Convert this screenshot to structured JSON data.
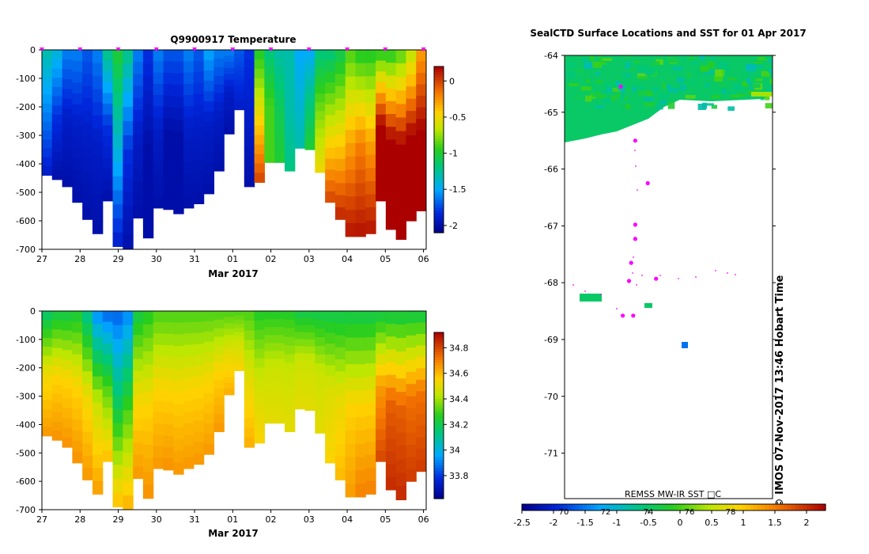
{
  "chart_data": [
    {
      "type": "heatmap",
      "title": "Q9900917  Temperature",
      "xlabel": "Mar 2017",
      "x_ticks": [
        "27",
        "28",
        "29",
        "30",
        "31",
        "01",
        "02",
        "03",
        "04",
        "05",
        "06"
      ],
      "y_ticks": [
        "0",
        "-100",
        "-200",
        "-300",
        "-400",
        "-500",
        "-600",
        "-700"
      ],
      "ylim": [
        -700,
        0
      ],
      "colorbar": {
        "ticks": [
          "0",
          "-0.5",
          "-1",
          "-1.5",
          "-2"
        ],
        "range": [
          -2.1,
          0.2
        ]
      },
      "profile_max_depth": [
        440,
        455,
        480,
        535,
        595,
        645,
        530,
        690,
        700,
        590,
        660,
        555,
        560,
        575,
        555,
        540,
        505,
        425,
        295,
        210,
        480,
        465,
        395,
        395,
        425,
        345,
        350,
        430,
        535,
        595,
        655,
        655,
        645,
        530,
        630,
        665,
        600,
        565
      ],
      "profile_temps_top_mid_bottom": [
        [
          -1.3,
          -1.6,
          -1.9
        ],
        [
          -1.4,
          -1.8,
          -2.0
        ],
        [
          -1.6,
          -1.9,
          -2.0
        ],
        [
          -1.6,
          -1.9,
          -2.0
        ],
        [
          -1.7,
          -1.9,
          -2.0
        ],
        [
          -1.6,
          -1.9,
          -2.0
        ],
        [
          -1.2,
          -1.8,
          -2.0
        ],
        [
          -1.0,
          -1.4,
          -1.9
        ],
        [
          -1.2,
          -1.8,
          -2.0
        ],
        [
          -1.6,
          -1.9,
          -2.0
        ],
        [
          -1.8,
          -2.0,
          -2.0
        ],
        [
          -1.6,
          -1.9,
          -2.0
        ],
        [
          -1.7,
          -2.0,
          -2.0
        ],
        [
          -1.7,
          -2.0,
          -2.0
        ],
        [
          -1.6,
          -1.9,
          -2.0
        ],
        [
          -1.7,
          -1.9,
          -2.0
        ],
        [
          -1.5,
          -1.9,
          -2.0
        ],
        [
          -1.6,
          -1.9,
          -2.0
        ],
        [
          -1.6,
          -1.9,
          -2.0
        ],
        [
          -1.7,
          -1.8,
          -1.9
        ],
        [
          -1.8,
          -1.9,
          -2.0
        ],
        [
          -1.0,
          -0.5,
          0.0
        ],
        [
          -1.2,
          -0.9,
          -0.9
        ],
        [
          -1.3,
          -1.1,
          -1.0
        ],
        [
          -1.3,
          -1.3,
          -1.2
        ],
        [
          -1.5,
          -1.4,
          -1.3
        ],
        [
          -1.5,
          -1.2,
          -1.0
        ],
        [
          -1.2,
          -0.8,
          -0.5
        ],
        [
          -1.2,
          -0.6,
          0.0
        ],
        [
          -1.1,
          -0.5,
          0.1
        ],
        [
          -0.9,
          -0.3,
          0.15
        ],
        [
          -1.0,
          -0.2,
          0.15
        ],
        [
          -1.0,
          -0.3,
          0.15
        ],
        [
          -1.0,
          0.2,
          0.2
        ],
        [
          -1.0,
          0.2,
          0.2
        ],
        [
          -0.9,
          0.2,
          0.2
        ],
        [
          -0.7,
          0.2,
          0.2
        ],
        [
          -0.3,
          0.2,
          0.2
        ]
      ]
    },
    {
      "type": "heatmap",
      "title": "",
      "xlabel": "Mar 2017",
      "x_ticks": [
        "27",
        "28",
        "29",
        "30",
        "31",
        "01",
        "02",
        "03",
        "04",
        "05",
        "06"
      ],
      "y_ticks": [
        "0",
        "-100",
        "-200",
        "-300",
        "-400",
        "-500",
        "-600",
        "-700"
      ],
      "ylim": [
        -700,
        0
      ],
      "colorbar": {
        "ticks": [
          "34.8",
          "34.6",
          "34.4",
          "34.2",
          "34",
          "33.8"
        ],
        "range": [
          33.62,
          34.92
        ]
      },
      "profile_max_depth": [
        440,
        455,
        480,
        535,
        595,
        645,
        530,
        690,
        700,
        590,
        660,
        555,
        560,
        575,
        555,
        540,
        505,
        425,
        295,
        210,
        480,
        465,
        395,
        395,
        425,
        345,
        350,
        430,
        535,
        595,
        655,
        655,
        645,
        530,
        630,
        665,
        600,
        565
      ],
      "profile_salinity_top_mid_bottom": [
        [
          34.15,
          34.52,
          34.66
        ],
        [
          34.2,
          34.55,
          34.67
        ],
        [
          34.2,
          34.55,
          34.67
        ],
        [
          34.22,
          34.55,
          34.67
        ],
        [
          34.1,
          34.52,
          34.66
        ],
        [
          33.9,
          34.45,
          34.65
        ],
        [
          33.85,
          34.3,
          34.6
        ],
        [
          33.85,
          34.2,
          34.6
        ],
        [
          33.9,
          34.3,
          34.62
        ],
        [
          34.2,
          34.52,
          34.66
        ],
        [
          34.25,
          34.55,
          34.67
        ],
        [
          34.3,
          34.55,
          34.66
        ],
        [
          34.3,
          34.55,
          34.67
        ],
        [
          34.3,
          34.55,
          34.66
        ],
        [
          34.3,
          34.55,
          34.66
        ],
        [
          34.3,
          34.55,
          34.66
        ],
        [
          34.3,
          34.55,
          34.66
        ],
        [
          34.3,
          34.55,
          34.66
        ],
        [
          34.3,
          34.5,
          34.62
        ],
        [
          34.3,
          34.45,
          34.55
        ],
        [
          34.3,
          34.5,
          34.62
        ],
        [
          34.25,
          34.45,
          34.55
        ],
        [
          34.25,
          34.45,
          34.5
        ],
        [
          34.25,
          34.45,
          34.5
        ],
        [
          34.25,
          34.45,
          34.5
        ],
        [
          34.2,
          34.45,
          34.5
        ],
        [
          34.2,
          34.45,
          34.5
        ],
        [
          34.2,
          34.45,
          34.5
        ],
        [
          34.2,
          34.48,
          34.55
        ],
        [
          34.2,
          34.5,
          34.6
        ],
        [
          34.2,
          34.55,
          34.65
        ],
        [
          34.2,
          34.55,
          34.7
        ],
        [
          34.2,
          34.55,
          34.7
        ],
        [
          34.2,
          34.65,
          34.8
        ],
        [
          34.2,
          34.75,
          34.85
        ],
        [
          34.2,
          34.75,
          34.85
        ],
        [
          34.2,
          34.72,
          34.82
        ],
        [
          34.2,
          34.72,
          34.82
        ]
      ]
    },
    {
      "type": "heatmap",
      "title": "SealCTD Surface Locations and SST for 01 Apr 2017",
      "ylabel": "",
      "y_ticks": [
        "-64",
        "-65",
        "-66",
        "-67",
        "-68",
        "-69",
        "-70",
        "-71"
      ],
      "ylim": [
        -71.8,
        -64
      ],
      "source_label": "REMSS MW-IR SST □C",
      "footer_label": "© IMOS 07-Nov-2017 13:46 Hobart Time",
      "colorbar": {
        "ticks": [
          "-2.5",
          "-2",
          "-1.5",
          "-1",
          "-0.5",
          "0",
          "0.5",
          "1",
          "1.5",
          "2"
        ],
        "range": [
          -2.5,
          2.3
        ],
        "overlay_ticks": [
          "70",
          "72",
          "74",
          "76",
          "78"
        ]
      },
      "seal_locations": [
        {
          "lat": -64.55,
          "lon": 0.27
        },
        {
          "lat": -65.5,
          "lon": 0.34
        },
        {
          "lat": -66.25,
          "lon": 0.4
        },
        {
          "lat": -66.98,
          "lon": 0.34
        },
        {
          "lat": -67.23,
          "lon": 0.34
        },
        {
          "lat": -67.65,
          "lon": 0.32
        },
        {
          "lat": -67.97,
          "lon": 0.31
        },
        {
          "lat": -67.93,
          "lon": 0.44
        },
        {
          "lat": -68.58,
          "lon": 0.28
        },
        {
          "lat": -68.58,
          "lon": 0.33
        }
      ]
    }
  ]
}
